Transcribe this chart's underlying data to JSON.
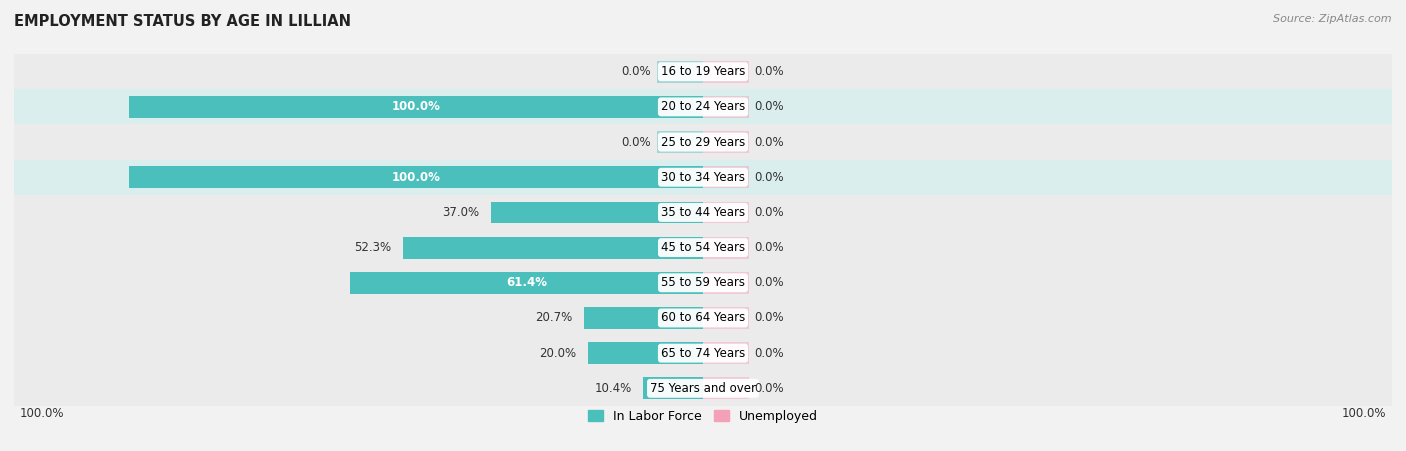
{
  "title": "EMPLOYMENT STATUS BY AGE IN LILLIAN",
  "source": "Source: ZipAtlas.com",
  "age_groups": [
    "16 to 19 Years",
    "20 to 24 Years",
    "25 to 29 Years",
    "30 to 34 Years",
    "35 to 44 Years",
    "45 to 54 Years",
    "55 to 59 Years",
    "60 to 64 Years",
    "65 to 74 Years",
    "75 Years and over"
  ],
  "labor_force": [
    0.0,
    100.0,
    0.0,
    100.0,
    37.0,
    52.3,
    61.4,
    20.7,
    20.0,
    10.4
  ],
  "unemployed": [
    0.0,
    0.0,
    0.0,
    0.0,
    0.0,
    0.0,
    0.0,
    0.0,
    0.0,
    0.0
  ],
  "labor_force_color": "#4bbfbb",
  "unemployed_color": "#f4a0b8",
  "background_color": "#f2f2f2",
  "row_light": "#ebebeb",
  "row_teal": "#daeeed",
  "title_fontsize": 10.5,
  "label_fontsize": 8.5,
  "axis_max": 100.0,
  "legend_labels": [
    "In Labor Force",
    "Unemployed"
  ],
  "x_axis_label_left": "100.0%",
  "x_axis_label_right": "100.0%",
  "stub_size": 8.0,
  "unemployed_stub": 8.0
}
